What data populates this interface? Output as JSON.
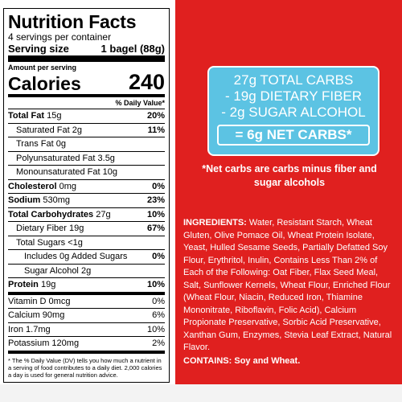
{
  "label": {
    "title": "Nutrition Facts",
    "servings": "4 servings per container",
    "serving_size_label": "Serving size",
    "serving_size_value": "1 bagel (88g)",
    "amount_per_serving": "Amount per serving",
    "calories_label": "Calories",
    "calories_value": "240",
    "dv_header": "% Daily Value*",
    "rows": [
      {
        "name": "Total Fat",
        "amount": "15g",
        "dv": "20%"
      },
      {
        "name": "Saturated Fat",
        "amount": "2g",
        "dv": "11%"
      },
      {
        "name": "Trans Fat",
        "amount": "0g",
        "dv": ""
      },
      {
        "name": "Polyunsaturated Fat",
        "amount": "3.5g",
        "dv": ""
      },
      {
        "name": "Monounsaturated Fat",
        "amount": "10g",
        "dv": ""
      },
      {
        "name": "Cholesterol",
        "amount": "0mg",
        "dv": "0%"
      },
      {
        "name": "Sodium",
        "amount": "530mg",
        "dv": "23%"
      },
      {
        "name": "Total Carbohydrates",
        "amount": "27g",
        "dv": "10%"
      },
      {
        "name": "Dietary Fiber",
        "amount": "19g",
        "dv": "67%"
      },
      {
        "name": "Total Sugars",
        "amount": "<1g",
        "dv": ""
      },
      {
        "name": "Includes 0g Added Sugars",
        "amount": "",
        "dv": "0%"
      },
      {
        "name": "Sugar Alcohol",
        "amount": "2g",
        "dv": ""
      },
      {
        "name": "Protein",
        "amount": "19g",
        "dv": "10%"
      },
      {
        "name": "Vitamin D",
        "amount": "0mcg",
        "dv": "0%"
      },
      {
        "name": "Calcium",
        "amount": "90mg",
        "dv": "6%"
      },
      {
        "name": "Iron",
        "amount": "1.7mg",
        "dv": "10%"
      },
      {
        "name": "Potassium",
        "amount": "120mg",
        "dv": "2%"
      }
    ],
    "footnote": "* The % Daily Value (DV) tells you how much a nutrient in a serving of food contributes to a daily diet. 2,000 calories a day is used for general nutrition advice."
  },
  "carb_box": {
    "line1": "27g TOTAL CARBS",
    "line2": "- 19g DIETARY FIBER",
    "line3": "- 2g SUGAR ALCOHOL",
    "net": "= 6g NET CARBS*"
  },
  "net_note": "*Net carbs are carbs minus fiber and sugar alcohols",
  "ingredients": {
    "heading": "INGREDIENTS:",
    "text": "Water, Resistant Starch, Wheat Gluten, Olive Pomace Oil, Wheat Protein Isolate, Yeast, Hulled Sesame Seeds, Partially Defatted Soy Flour, Erythritol, Inulin, Contains Less Than 2% of Each of the Following: Oat Fiber, Flax Seed Meal, Salt, Sunflower Kernels, Wheat Flour, Enriched Flour (Wheat Flour, Niacin, Reduced Iron, Thiamine Mononitrate, Riboflavin, Folic Acid), Calcium Propionate Preservative, Sorbic Acid Preservative, Xanthan Gum, Enzymes, Stevia Leaf Extract, Natural Flavor.",
    "contains_label": "CONTAINS:",
    "contains_text": "Soy and Wheat."
  },
  "colors": {
    "panel_red": "#e0201f",
    "carb_blue": "#5cc3e3"
  }
}
